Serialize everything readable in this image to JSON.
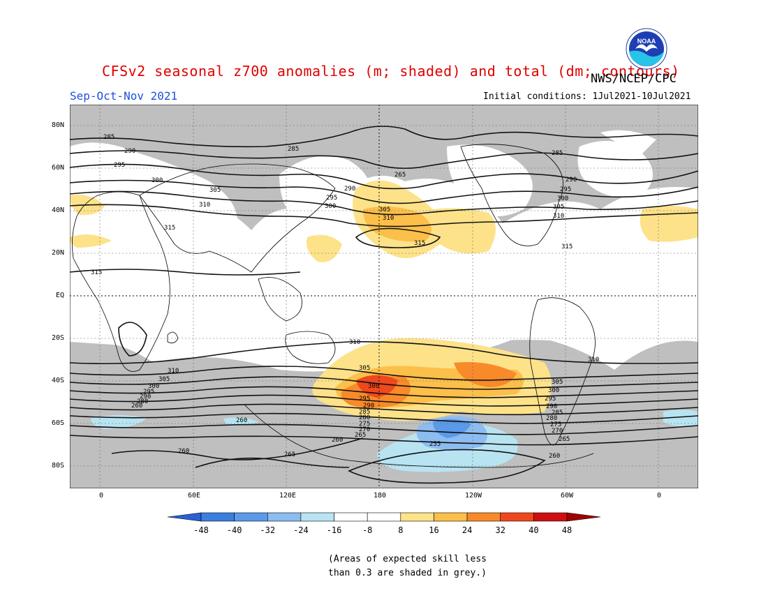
{
  "header": {
    "title": "CFSv2 seasonal z700 anomalies (m; shaded) and total (dm; contours)",
    "agency": "NWS/NCEP/CPC",
    "season": "Sep-Oct-Nov 2021",
    "initial_conditions": "Initial conditions: 1Jul2021-10Jul2021",
    "logo_text": "NOAA"
  },
  "axes": {
    "lat_labels": [
      "80N",
      "60N",
      "40N",
      "20N",
      "EQ",
      "20S",
      "40S",
      "60S",
      "80S"
    ],
    "lon_labels": [
      "0",
      "60E",
      "120E",
      "180",
      "120W",
      "60W",
      "0"
    ]
  },
  "contour_labels": [
    "285",
    "290",
    "295",
    "300",
    "305",
    "310",
    "315",
    "265",
    "260",
    "255",
    "270",
    "275",
    "280"
  ],
  "colorbar": {
    "ticks": [
      "-48",
      "-40",
      "-32",
      "-24",
      "-16",
      "-8",
      "8",
      "16",
      "24",
      "32",
      "40",
      "48"
    ],
    "colors": [
      "#2a5fd6",
      "#3a7fe0",
      "#5a9ae8",
      "#8cbcf0",
      "#b8e4f2",
      "#ffffff",
      "#ffffff",
      "#fde28a",
      "#fbbf4a",
      "#f88a2a",
      "#f0481c",
      "#d01010",
      "#a00000"
    ]
  },
  "note": "(Areas of expected skill less\nthan 0.3 are shaded in grey.)",
  "colors": {
    "grey_mask": "#bfbfbf",
    "title_red": "#e00000",
    "season_blue": "#1f4fe0"
  }
}
